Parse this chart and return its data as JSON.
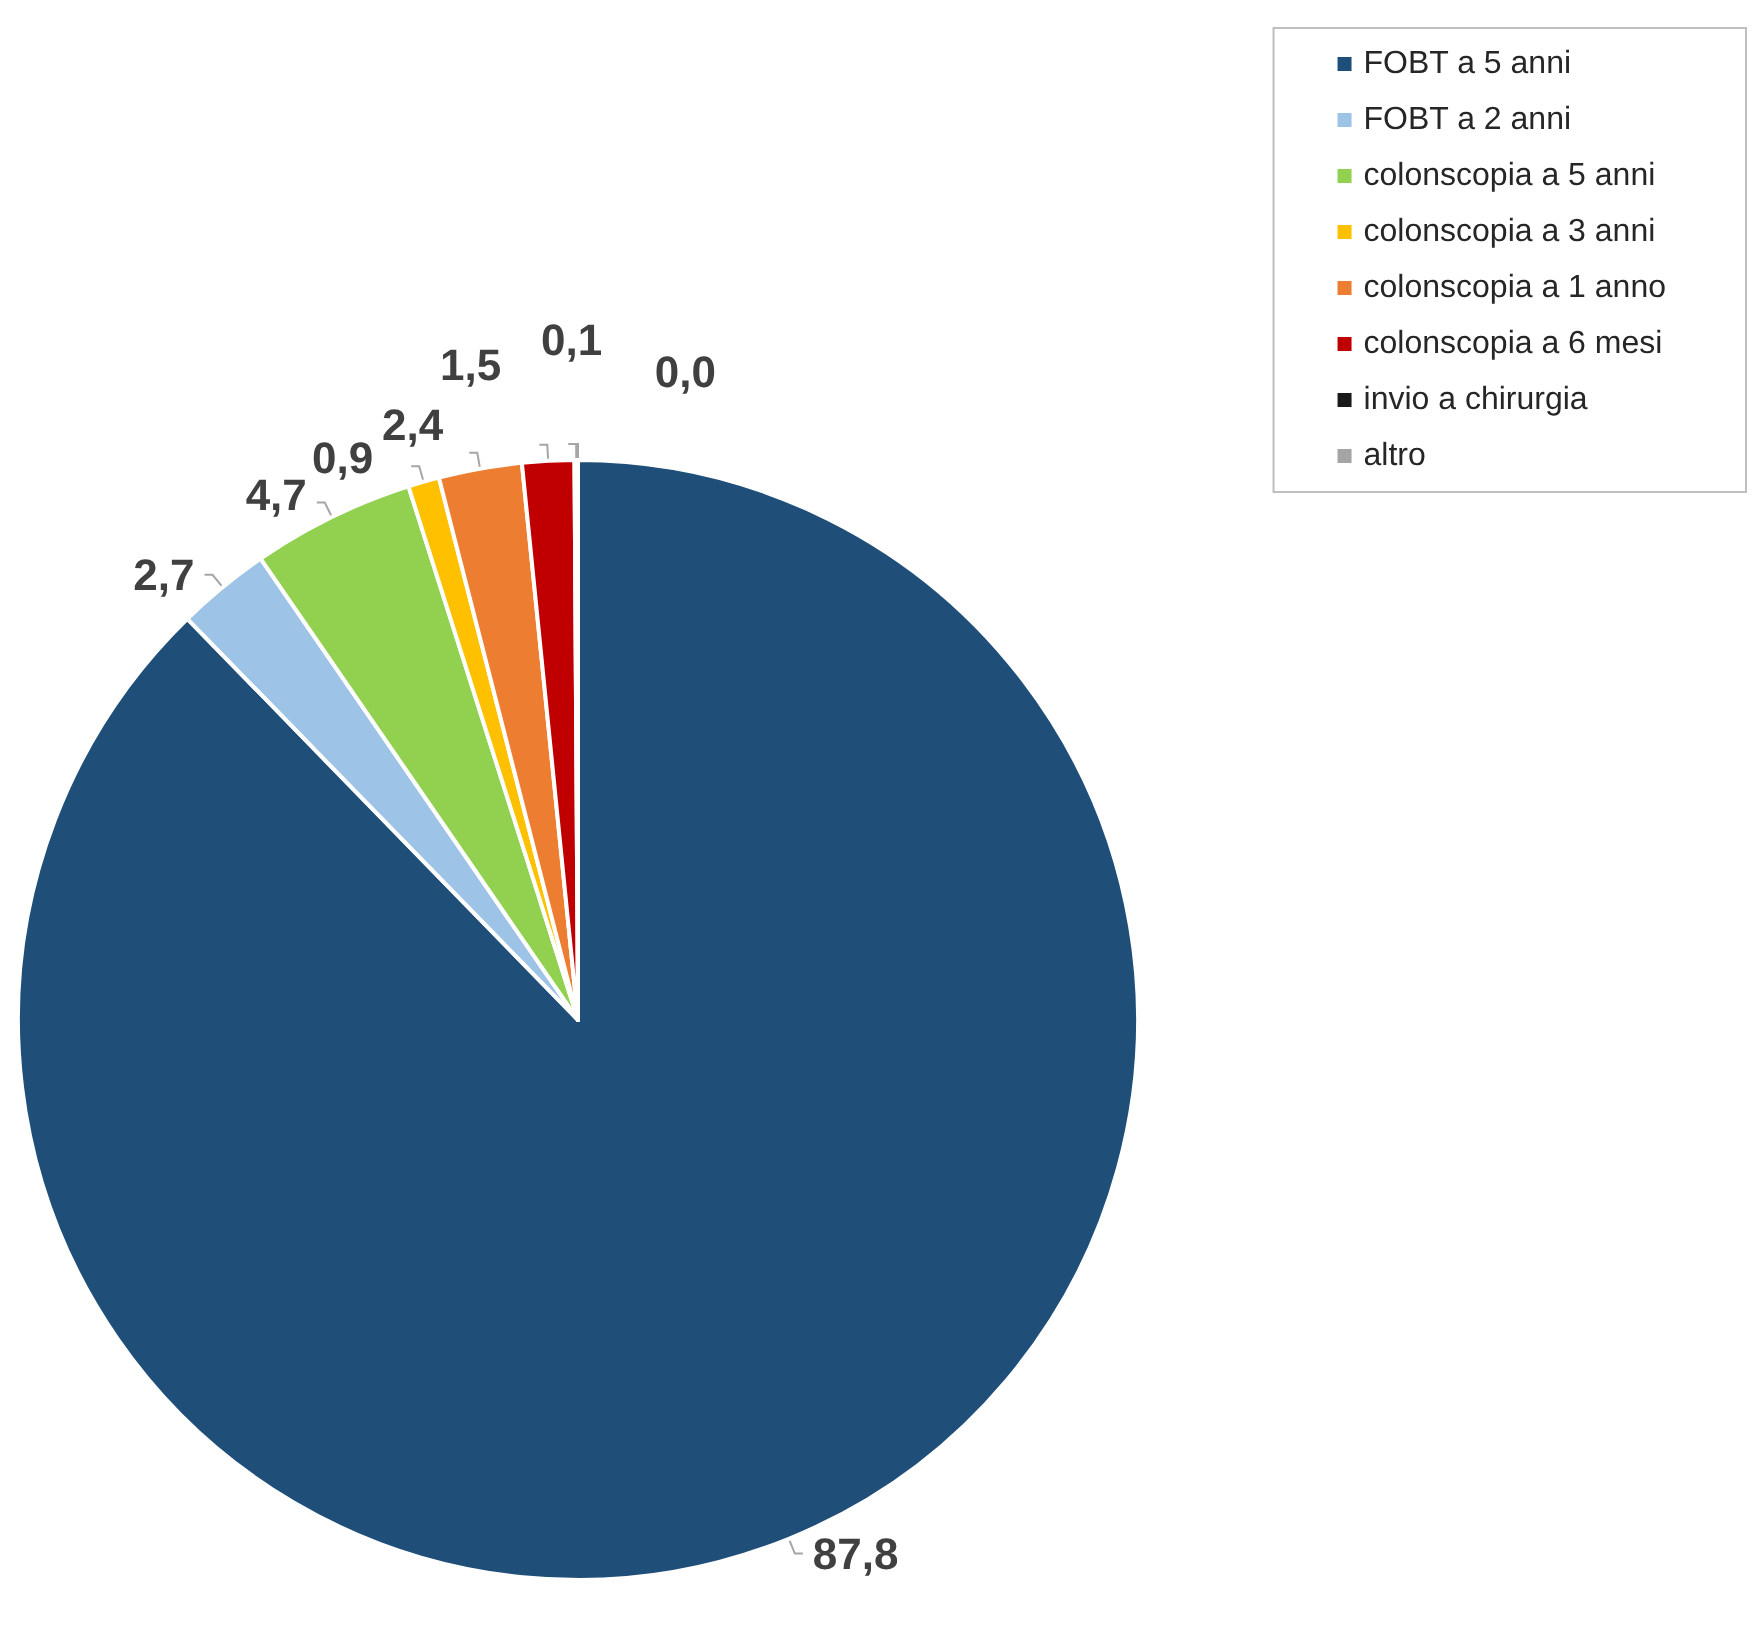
{
  "chart_data": {
    "type": "pie",
    "categories": [
      "FOBT a 5 anni",
      "FOBT a 2 anni",
      "colonscopia a 5 anni",
      "colonscopia a 3 anni",
      "colonscopia a 1 anno",
      "colonscopia a 6 mesi",
      "invio a chirurgia",
      "altro"
    ],
    "values": [
      87.8,
      2.7,
      4.7,
      0.9,
      2.4,
      1.5,
      0.1,
      0.0
    ],
    "value_labels": [
      "87,8",
      "2,7",
      "4,7",
      "0,9",
      "2,4",
      "1,5",
      "0,1",
      "0,0"
    ],
    "colors": [
      "#1f4e79",
      "#9dc3e6",
      "#92d050",
      "#ffc000",
      "#ed7d31",
      "#c00000",
      "#1a1a1a",
      "#a5a5a5"
    ],
    "legend": "top right"
  }
}
